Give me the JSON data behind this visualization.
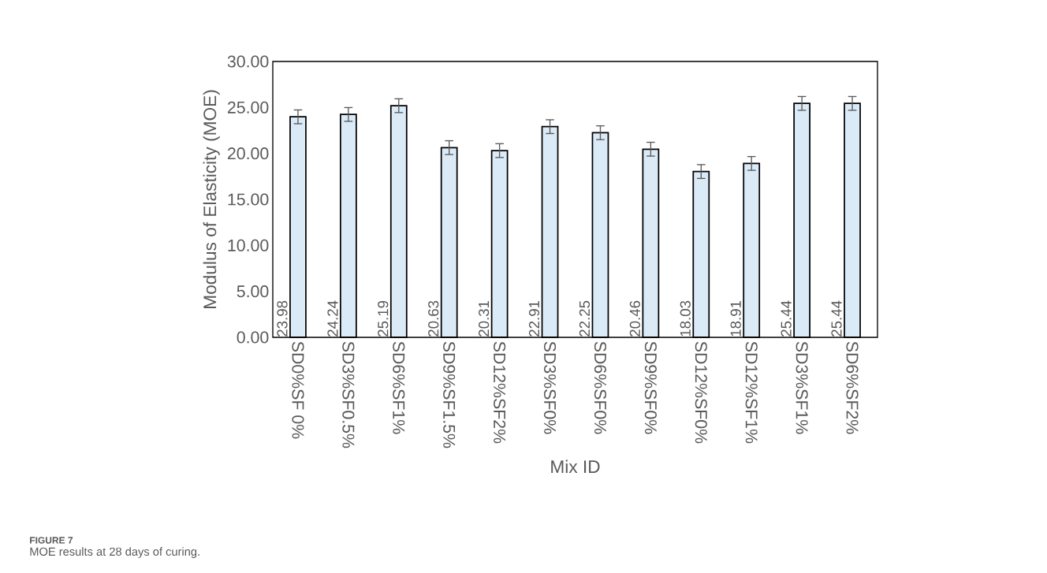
{
  "chart_data": {
    "type": "bar",
    "xlabel": "Mix ID",
    "ylabel": "Modulus of Elasticity (MOE)",
    "categories": [
      "SD0%SF 0%",
      "SD3%SF0.5%",
      "SD6%SF1%",
      "SD9%SF1.5%",
      "SD12%SF2%",
      "SD3%SF0%",
      "SD6%SF0%",
      "SD9%SF0%",
      "SD12%SF0%",
      "SD12%SF1%",
      "SD3%SF1%",
      "SD6%SF2%"
    ],
    "values": [
      23.98,
      24.24,
      25.19,
      20.63,
      20.31,
      22.91,
      22.25,
      20.46,
      18.03,
      18.91,
      25.44,
      25.44
    ],
    "errors": [
      0.75,
      0.75,
      0.75,
      0.75,
      0.75,
      0.75,
      0.75,
      0.75,
      0.75,
      0.75,
      0.75,
      0.75
    ],
    "color": "#dbeaf7",
    "data_labels": true,
    "ylim": [
      0,
      30
    ],
    "yticks": [
      {
        "value": 0,
        "label": "0.00"
      },
      {
        "value": 5,
        "label": "5.00"
      },
      {
        "value": 10,
        "label": "10.00"
      },
      {
        "value": 15,
        "label": "15.00"
      },
      {
        "value": 20,
        "label": "20.00"
      },
      {
        "value": 25,
        "label": "25.00"
      },
      {
        "value": 30,
        "label": "30.00"
      }
    ],
    "annotations": [
      "FIGURE 7",
      "MOE results at 28 days of curing."
    ]
  }
}
